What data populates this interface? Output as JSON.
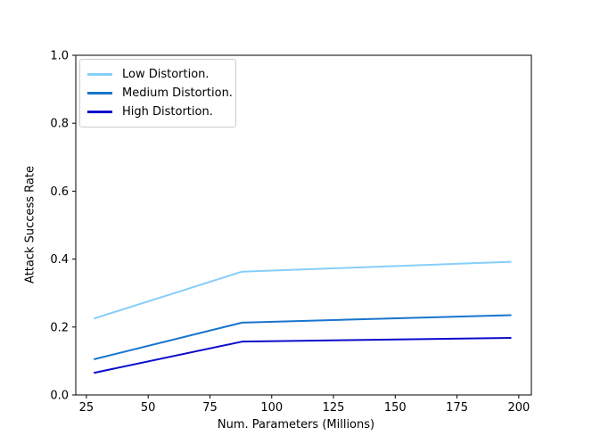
{
  "chart_data": {
    "type": "line",
    "title": "",
    "xlabel": "Num. Parameters (Millions)",
    "ylabel": "Attack Success Rate",
    "x": [
      28,
      88,
      197
    ],
    "series": [
      {
        "name": "Low Distortion.",
        "color": "#87CEFA",
        "values": [
          0.225,
          0.363,
          0.392
        ]
      },
      {
        "name": "Medium Distortion.",
        "color": "#1874CD",
        "values": [
          0.105,
          0.213,
          0.235
        ]
      },
      {
        "name": "High Distortion.",
        "color": "#0B0BCD",
        "values": [
          0.065,
          0.157,
          0.168
        ]
      }
    ],
    "xlim": [
      20.7,
      205.1
    ],
    "ylim": [
      0,
      1
    ],
    "xticks": [
      25,
      50,
      75,
      100,
      125,
      150,
      175,
      200
    ],
    "yticks": [
      "0.0",
      "0.2",
      "0.4",
      "0.6",
      "0.8",
      "1.0"
    ],
    "grid": false,
    "legend_position": "upper left",
    "spine_color": "#000000",
    "tick_label_color": "#000000",
    "line_width": 2
  }
}
